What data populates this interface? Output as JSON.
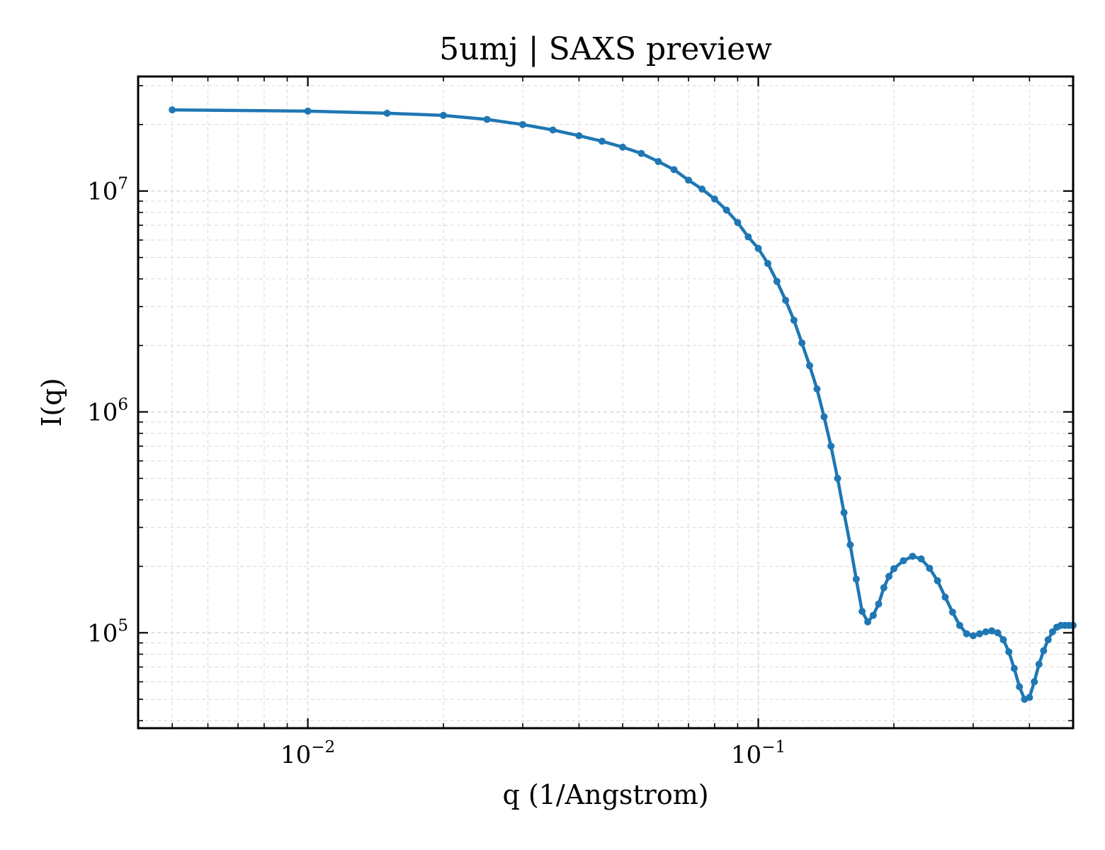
{
  "chart_data": {
    "type": "line",
    "title": "5umj | SAXS preview",
    "xlabel": "q (1/Angstrom)",
    "ylabel": "I(q)",
    "xscale": "log",
    "yscale": "log",
    "xlim": [
      0.0042,
      0.5
    ],
    "ylim": [
      37000,
      33000000
    ],
    "grid": true,
    "legend": "none",
    "line_color": "#1f77b4",
    "x_ticks": [
      {
        "base": "10",
        "exp": "−2",
        "value": 0.01
      },
      {
        "base": "10",
        "exp": "−1",
        "value": 0.1
      }
    ],
    "y_ticks": [
      {
        "base": "10",
        "exp": "5",
        "value": 100000
      },
      {
        "base": "10",
        "exp": "6",
        "value": 1000000
      },
      {
        "base": "10",
        "exp": "7",
        "value": 10000000
      }
    ],
    "series": [
      {
        "x": [
          0.005,
          0.01,
          0.015,
          0.02,
          0.025,
          0.03,
          0.035,
          0.04,
          0.045,
          0.05,
          0.055,
          0.06,
          0.065,
          0.07,
          0.075,
          0.08,
          0.085,
          0.09,
          0.095,
          0.1,
          0.105,
          0.11,
          0.115,
          0.12,
          0.125,
          0.13,
          0.135,
          0.14,
          0.145,
          0.15,
          0.155,
          0.16,
          0.165,
          0.17,
          0.175,
          0.18,
          0.185,
          0.19,
          0.195,
          0.2,
          0.21,
          0.22,
          0.23,
          0.24,
          0.25,
          0.26,
          0.27,
          0.28,
          0.29,
          0.3,
          0.31,
          0.32,
          0.33,
          0.34,
          0.35,
          0.36,
          0.37,
          0.38,
          0.39,
          0.4,
          0.41,
          0.42,
          0.43,
          0.44,
          0.45,
          0.46,
          0.47,
          0.48,
          0.49,
          0.5
        ],
        "y": [
          23300000,
          23000000,
          22500000,
          22000000,
          21100000,
          20000000,
          18900000,
          17800000,
          16800000,
          15800000,
          14800000,
          13600000,
          12500000,
          11200000,
          10200000,
          9200000,
          8200000,
          7200000,
          6200000,
          5500000,
          4700000,
          3900000,
          3200000,
          2600000,
          2050000,
          1620000,
          1270000,
          950000,
          700000,
          500000,
          350000,
          250000,
          175000,
          125000,
          112000,
          120000,
          135000,
          160000,
          180000,
          195000,
          212000,
          222000,
          216000,
          196000,
          172000,
          145000,
          124000,
          108000,
          99000,
          97000,
          99000,
          101000,
          102000,
          100000,
          93000,
          82000,
          69000,
          57000,
          50000,
          51000,
          60000,
          72000,
          83000,
          93000,
          101000,
          106000,
          108000,
          108000,
          108000,
          108000
        ]
      }
    ]
  }
}
